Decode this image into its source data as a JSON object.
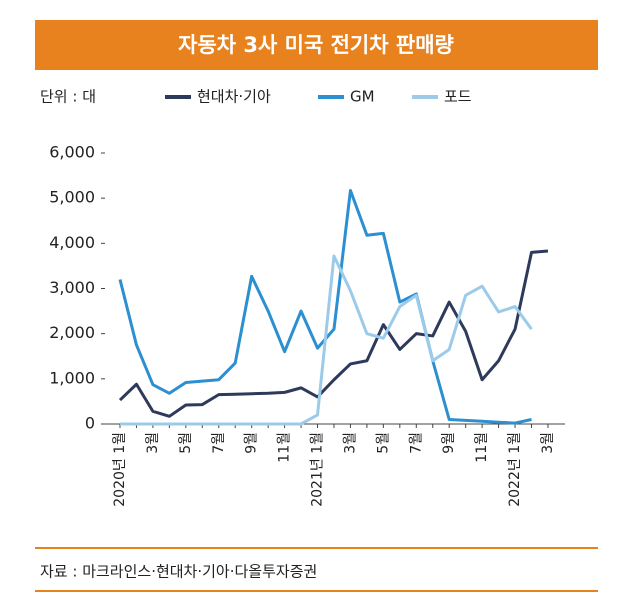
{
  "chart_data": {
    "type": "line",
    "title": "자동차 3사 미국 전기차 판매량",
    "unit_label": "단위 : 대",
    "source": "자료 : 마크라인스·현대차·기아·다올투자증권",
    "categories": [
      "2020년 1월",
      null,
      "3월",
      null,
      "5월",
      null,
      "7월",
      null,
      "9월",
      null,
      "11월",
      null,
      "2021년 1월",
      null,
      "3월",
      null,
      "5월",
      null,
      "7월",
      null,
      "9월",
      null,
      "11월",
      null,
      "2022년 1월",
      null,
      "3월"
    ],
    "series": [
      {
        "name": "현대차·기아",
        "color": "#2e3a5c",
        "values": [
          530,
          880,
          280,
          170,
          420,
          430,
          650,
          660,
          670,
          680,
          700,
          800,
          600,
          980,
          1330,
          1400,
          2200,
          1650,
          2000,
          1950,
          2700,
          2050,
          980,
          1400,
          2100,
          3800,
          3830
        ]
      },
      {
        "name": "GM",
        "color": "#2b8fd0",
        "values": [
          3200,
          1750,
          870,
          680,
          920,
          950,
          980,
          1350,
          3270,
          2500,
          1600,
          2500,
          1680,
          2100,
          5170,
          4180,
          4220,
          2700,
          2880,
          1400,
          100,
          80,
          60,
          40,
          20,
          100,
          null
        ]
      },
      {
        "name": "포드",
        "color": "#9ccbea",
        "values": [
          0,
          0,
          0,
          0,
          0,
          0,
          0,
          0,
          0,
          0,
          0,
          0,
          200,
          3720,
          2950,
          2000,
          1900,
          2600,
          2850,
          1400,
          1650,
          2850,
          3050,
          2480,
          2600,
          2100,
          null
        ]
      }
    ],
    "ylim": [
      0,
      6000
    ],
    "yticks": [
      0,
      {
        "value": 1000,
        "label": "1,000"
      },
      {
        "value": 2000,
        "label": "2,000"
      },
      {
        "value": 3000,
        "label": "3,000"
      },
      {
        "value": 4000,
        "label": "4,000"
      },
      {
        "value": 5000,
        "label": "5,000"
      },
      {
        "value": 6000,
        "label": "6,000"
      }
    ],
    "legend": "top",
    "grid": false
  }
}
